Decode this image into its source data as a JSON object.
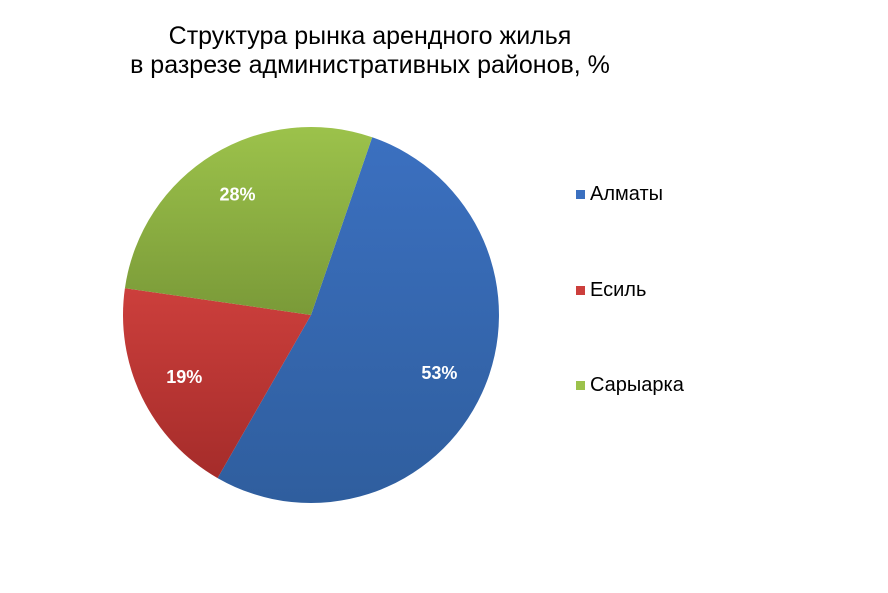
{
  "chart_data": {
    "type": "pie",
    "title_lines": [
      "Структура рынка арендного жилья",
      "в разрезе административных районов, %"
    ],
    "slices": [
      {
        "label": "Алматы",
        "value": 53,
        "data_label": "53%",
        "color": "#3b70c0",
        "color_dark": "#2f5e9e"
      },
      {
        "label": "Есиль",
        "value": 19,
        "data_label": "19%",
        "color": "#cc3f3c",
        "color_dark": "#a52c2a"
      },
      {
        "label": "Сарыарка",
        "value": 28,
        "data_label": "28%",
        "color": "#9cc24b",
        "color_dark": "#7a9a38"
      }
    ],
    "legend_position": "right"
  }
}
